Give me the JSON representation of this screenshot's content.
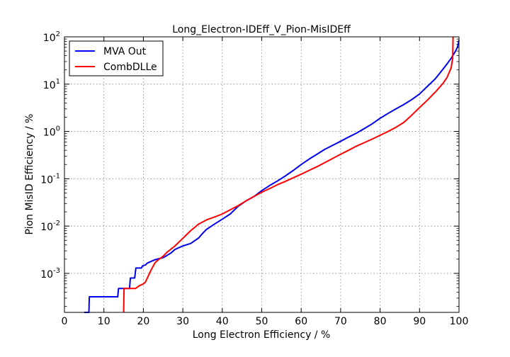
{
  "chart_data": {
    "type": "line",
    "title": "Long_Electron-IDEff_V_Pion-MisIDEff",
    "xlabel": "Long Electron Efficiency / %",
    "ylabel": "Pion MisID Efficiency / %",
    "xlim": [
      0,
      100
    ],
    "ylim": [
      0.00015,
      100
    ],
    "yscale": "log",
    "grid": true,
    "legend_position": "top-left",
    "x_ticks": [
      {
        "value": 0,
        "label": "0"
      },
      {
        "value": 10,
        "label": "10"
      },
      {
        "value": 20,
        "label": "20"
      },
      {
        "value": 30,
        "label": "30"
      },
      {
        "value": 40,
        "label": "40"
      },
      {
        "value": 50,
        "label": "50"
      },
      {
        "value": 60,
        "label": "60"
      },
      {
        "value": 70,
        "label": "70"
      },
      {
        "value": 80,
        "label": "80"
      },
      {
        "value": 90,
        "label": "90"
      },
      {
        "value": 100,
        "label": "100"
      }
    ],
    "y_ticks": [
      {
        "value": 0.001,
        "base": "10",
        "exp": "-3"
      },
      {
        "value": 0.01,
        "base": "10",
        "exp": "-2"
      },
      {
        "value": 0.1,
        "base": "10",
        "exp": "-1"
      },
      {
        "value": 1,
        "base": "10",
        "exp": "0"
      },
      {
        "value": 10,
        "base": "10",
        "exp": "1"
      },
      {
        "value": 100,
        "base": "10",
        "exp": "2"
      }
    ],
    "series": [
      {
        "name": "MVA Out",
        "color": "#0000ee",
        "points": [
          [
            5,
            0.00015
          ],
          [
            5.8,
            0.00015
          ],
          [
            6.2,
            0.00015
          ],
          [
            6.3,
            0.00032
          ],
          [
            8,
            0.00032
          ],
          [
            10,
            0.00032
          ],
          [
            12,
            0.00032
          ],
          [
            13.5,
            0.00032
          ],
          [
            13.7,
            0.00048
          ],
          [
            16.5,
            0.00048
          ],
          [
            16.7,
            0.0008
          ],
          [
            17.8,
            0.0008
          ],
          [
            18.1,
            0.0013
          ],
          [
            19.5,
            0.0013
          ],
          [
            19.8,
            0.00145
          ],
          [
            20.5,
            0.0015
          ],
          [
            21,
            0.00165
          ],
          [
            22,
            0.0018
          ],
          [
            23,
            0.00195
          ],
          [
            24,
            0.00205
          ],
          [
            25,
            0.00215
          ],
          [
            26,
            0.0024
          ],
          [
            27,
            0.0027
          ],
          [
            28,
            0.0032
          ],
          [
            29,
            0.0035
          ],
          [
            30,
            0.0038
          ],
          [
            32,
            0.0043
          ],
          [
            34,
            0.0056
          ],
          [
            35,
            0.007
          ],
          [
            36,
            0.0085
          ],
          [
            38,
            0.011
          ],
          [
            40,
            0.014
          ],
          [
            42,
            0.018
          ],
          [
            44,
            0.026
          ],
          [
            46,
            0.034
          ],
          [
            48,
            0.042
          ],
          [
            50,
            0.056
          ],
          [
            52,
            0.072
          ],
          [
            54,
            0.09
          ],
          [
            56,
            0.115
          ],
          [
            58,
            0.15
          ],
          [
            60,
            0.2
          ],
          [
            62,
            0.26
          ],
          [
            64,
            0.33
          ],
          [
            66,
            0.42
          ],
          [
            68,
            0.51
          ],
          [
            70,
            0.62
          ],
          [
            72,
            0.76
          ],
          [
            74,
            0.92
          ],
          [
            76,
            1.15
          ],
          [
            78,
            1.45
          ],
          [
            80,
            1.9
          ],
          [
            82,
            2.4
          ],
          [
            84,
            3.0
          ],
          [
            86,
            3.7
          ],
          [
            88,
            4.7
          ],
          [
            90,
            6.2
          ],
          [
            92,
            9.0
          ],
          [
            94,
            13.0
          ],
          [
            96,
            21.0
          ],
          [
            97,
            27.0
          ],
          [
            98,
            35.0
          ],
          [
            99,
            48.0
          ],
          [
            99.6,
            60.0
          ],
          [
            100,
            85.0
          ]
        ]
      },
      {
        "name": "CombDLLe",
        "color": "#ff0000",
        "points": [
          [
            15,
            0.00015
          ],
          [
            15.1,
            0.00048
          ],
          [
            17,
            0.00048
          ],
          [
            18,
            0.00048
          ],
          [
            19,
            0.00055
          ],
          [
            20,
            0.0006
          ],
          [
            20.5,
            0.00065
          ],
          [
            22,
            0.0012
          ],
          [
            23,
            0.0017
          ],
          [
            24,
            0.002
          ],
          [
            25,
            0.0023
          ],
          [
            26,
            0.0028
          ],
          [
            28,
            0.0038
          ],
          [
            30,
            0.0055
          ],
          [
            32,
            0.008
          ],
          [
            34,
            0.011
          ],
          [
            36,
            0.0135
          ],
          [
            38,
            0.0155
          ],
          [
            40,
            0.018
          ],
          [
            42,
            0.022
          ],
          [
            44,
            0.027
          ],
          [
            46,
            0.034
          ],
          [
            48,
            0.042
          ],
          [
            50,
            0.052
          ],
          [
            52,
            0.062
          ],
          [
            54,
            0.075
          ],
          [
            56,
            0.088
          ],
          [
            58,
            0.105
          ],
          [
            60,
            0.125
          ],
          [
            62,
            0.15
          ],
          [
            64,
            0.18
          ],
          [
            66,
            0.22
          ],
          [
            68,
            0.27
          ],
          [
            70,
            0.33
          ],
          [
            72,
            0.4
          ],
          [
            74,
            0.49
          ],
          [
            76,
            0.58
          ],
          [
            78,
            0.69
          ],
          [
            80,
            0.83
          ],
          [
            82,
            1.0
          ],
          [
            84,
            1.22
          ],
          [
            86,
            1.55
          ],
          [
            88,
            2.2
          ],
          [
            90,
            3.2
          ],
          [
            92,
            4.6
          ],
          [
            94,
            6.8
          ],
          [
            96,
            10.5
          ],
          [
            97,
            14.0
          ],
          [
            98,
            22.0
          ],
          [
            98.4,
            35.0
          ],
          [
            98.5,
            100.0
          ]
        ]
      }
    ]
  }
}
